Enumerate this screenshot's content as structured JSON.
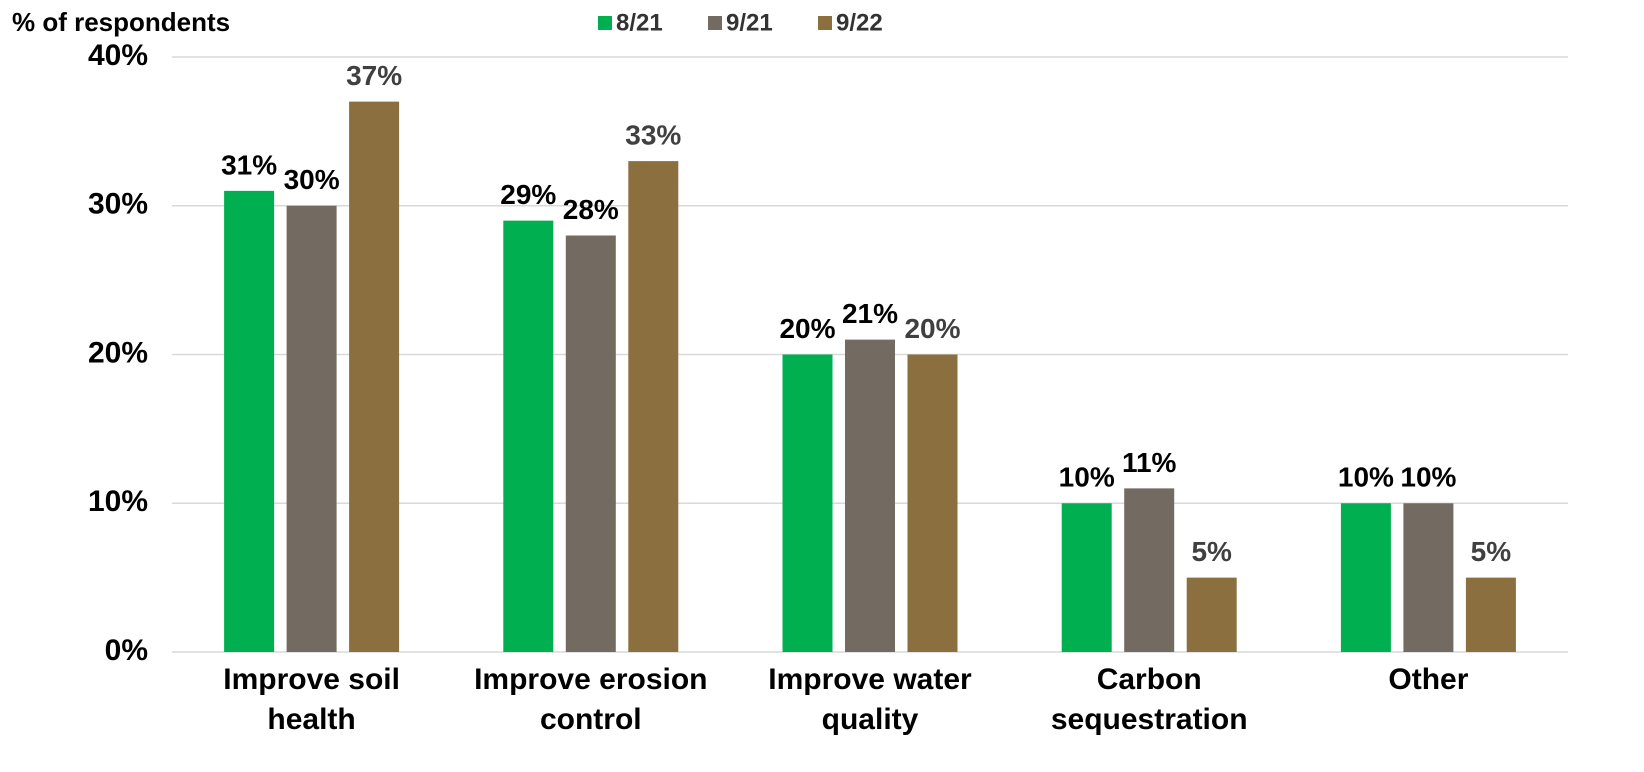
{
  "chart_data": {
    "type": "bar",
    "y_axis_label": "% of respondents",
    "categories": [
      "Improve soil health",
      "Improve erosion control",
      "Improve water quality",
      "Carbon sequestration",
      "Other"
    ],
    "series": [
      {
        "name": "8/21",
        "color": "#00b050",
        "label_color": "#000000",
        "values": [
          31,
          29,
          20,
          10,
          10
        ],
        "value_labels": [
          "31%",
          "29%",
          "20%",
          "10%",
          "10%"
        ]
      },
      {
        "name": "9/21",
        "color": "#736a62",
        "label_color": "#000000",
        "values": [
          30,
          28,
          21,
          11,
          10
        ],
        "value_labels": [
          "30%",
          "28%",
          "21%",
          "11%",
          "10%"
        ]
      },
      {
        "name": "9/22",
        "color": "#8b6f3e",
        "label_color": "#404040",
        "values": [
          37,
          33,
          20,
          5,
          5
        ],
        "value_labels": [
          "37%",
          "33%",
          "20%",
          "5%",
          "5%"
        ]
      }
    ],
    "ylim": [
      0,
      40
    ],
    "yticks": [
      {
        "value": 0,
        "label": "0%"
      },
      {
        "value": 10,
        "label": "10%"
      },
      {
        "value": 20,
        "label": "20%"
      },
      {
        "value": 30,
        "label": "30%"
      },
      {
        "value": 40,
        "label": "40%"
      }
    ],
    "grid": true
  }
}
